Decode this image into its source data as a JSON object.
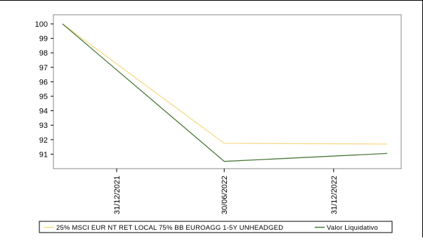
{
  "chart_data": {
    "type": "line",
    "title": "",
    "xlabel": "",
    "ylabel": "",
    "x": [
      "31/12/2021",
      "30/06/2022",
      "31/12/2022"
    ],
    "ylim": [
      90,
      100.5
    ],
    "yticks": [
      91,
      92,
      93,
      94,
      95,
      96,
      97,
      98,
      99,
      100
    ],
    "ytick_labels": [
      "91",
      "92",
      "93",
      "94",
      "95",
      "96",
      "97",
      "98",
      "99",
      "100"
    ],
    "grid": false,
    "legend_position": "bottom",
    "series": [
      {
        "name": "25% MSCI EUR NT RET LOCAL 75% BB EUROAGG 1-5Y UNHEADGED",
        "color": "#f8d98a",
        "points": [
          [
            "2021-10-01",
            100
          ],
          [
            "2022-06-30",
            91.75
          ],
          [
            "2023-03-31",
            91.7
          ]
        ]
      },
      {
        "name": "Valor Liquidativo",
        "color": "#4c7a3c",
        "points": [
          [
            "2021-10-01",
            100
          ],
          [
            "2022-06-30",
            90.5
          ],
          [
            "2023-03-31",
            91.05
          ]
        ]
      }
    ]
  }
}
